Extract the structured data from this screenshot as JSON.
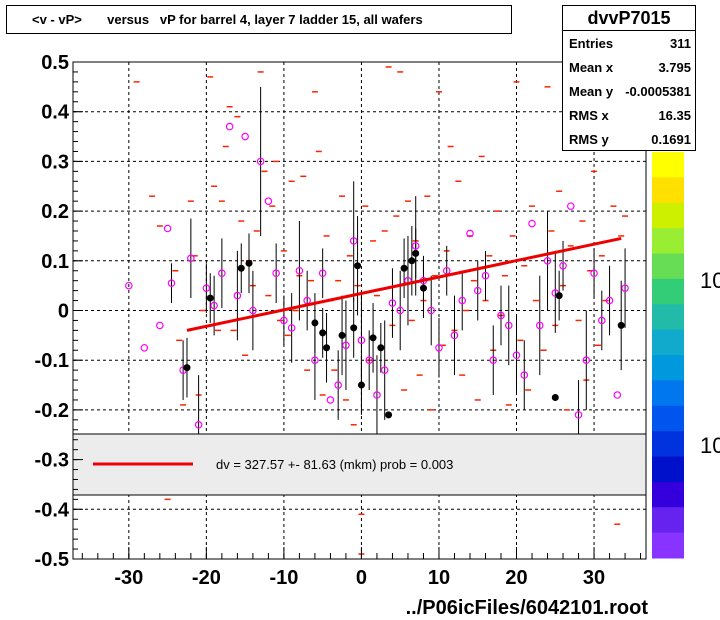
{
  "title": "<v - vP>       versus   vP for barrel 4, layer 7 ladder 15, all wafers",
  "stats": {
    "name": "dvvP7015",
    "rows": [
      {
        "label": "Entries",
        "value": "311"
      },
      {
        "label": "Mean x",
        "value": "3.795"
      },
      {
        "label": "Mean y",
        "value": "-0.0005381"
      },
      {
        "label": "RMS x",
        "value": "16.35"
      },
      {
        "label": "RMS y",
        "value": "0.1691"
      }
    ]
  },
  "footer": "../P06icFiles/6042101.root",
  "legend_text": "dv =  327.57 +- 81.63 (mkm) prob = 0.003",
  "palette_labels": [
    "10",
    "10"
  ],
  "colors": {
    "fit": "#ee0000",
    "profile": "#ff00ff",
    "markers": "#ff2200",
    "filled": "#000000"
  },
  "chart_data": {
    "type": "scatter",
    "title": "<v - vP>       versus   vP for barrel 4, layer 7 ladder 15, all wafers",
    "xlabel": "",
    "ylabel": "",
    "xlim": [
      -37,
      37
    ],
    "ylim": [
      -0.5,
      0.5
    ],
    "x_ticks": [
      -30,
      -20,
      -10,
      0,
      10,
      20,
      30
    ],
    "y_ticks": [
      -0.5,
      -0.4,
      -0.3,
      -0.2,
      -0.1,
      0,
      0.1,
      0.2,
      0.3,
      0.4,
      0.5
    ],
    "x_tick_labels": [
      "-30",
      "-20",
      "-10",
      "0",
      "10",
      "20",
      "30"
    ],
    "y_tick_labels": [
      "-0.5",
      "-0.4",
      "-0.3",
      "-0.2",
      "-0.1",
      "0",
      "0.1",
      "0.2",
      "0.3",
      "0.4",
      "0.5"
    ],
    "grid": true,
    "fit_line": {
      "x": [
        -22.5,
        33.5
      ],
      "y": [
        -0.04,
        0.145
      ]
    },
    "profile_points": [
      {
        "x": -30,
        "y": 0.05,
        "e": 0.0
      },
      {
        "x": -28,
        "y": -0.075,
        "e": 0.0
      },
      {
        "x": -26,
        "y": -0.03,
        "e": 0.0
      },
      {
        "x": -25,
        "y": 0.165,
        "e": 0.0
      },
      {
        "x": -24.5,
        "y": 0.055,
        "e": 0.04
      },
      {
        "x": -23,
        "y": -0.12,
        "e": 0.06
      },
      {
        "x": -22,
        "y": 0.105,
        "e": 0.08
      },
      {
        "x": -21,
        "y": -0.23,
        "e": 0.1
      },
      {
        "x": -20,
        "y": 0.045,
        "e": 0.05
      },
      {
        "x": -19,
        "y": 0.01,
        "e": 0.06
      },
      {
        "x": -18,
        "y": 0.075,
        "e": 0.07
      },
      {
        "x": -17,
        "y": 0.37,
        "e": 0.0
      },
      {
        "x": -16,
        "y": 0.03,
        "e": 0.09
      },
      {
        "x": -15,
        "y": 0.35,
        "e": 0.0
      },
      {
        "x": -14,
        "y": 0.0,
        "e": 0.08
      },
      {
        "x": -13,
        "y": 0.3,
        "e": 0.15
      },
      {
        "x": -12,
        "y": 0.22,
        "e": 0.0
      },
      {
        "x": -11,
        "y": 0.075,
        "e": 0.06
      },
      {
        "x": -10,
        "y": -0.02,
        "e": 0.05
      },
      {
        "x": -9,
        "y": -0.035,
        "e": 0.07
      },
      {
        "x": -8,
        "y": 0.08,
        "e": 0.1
      },
      {
        "x": -7,
        "y": 0.02,
        "e": 0.06
      },
      {
        "x": -6,
        "y": -0.1,
        "e": 0.08
      },
      {
        "x": -5,
        "y": 0.075,
        "e": 0.05
      },
      {
        "x": -4,
        "y": -0.18,
        "e": 0.0
      },
      {
        "x": -3,
        "y": -0.15,
        "e": 0.07
      },
      {
        "x": -2,
        "y": -0.07,
        "e": 0.09
      },
      {
        "x": -1,
        "y": 0.14,
        "e": 0.12
      },
      {
        "x": 0,
        "y": -0.06,
        "e": 0.1
      },
      {
        "x": 1,
        "y": -0.1,
        "e": 0.06
      },
      {
        "x": 2,
        "y": -0.17,
        "e": 0.08
      },
      {
        "x": 3,
        "y": -0.12,
        "e": 0.1
      },
      {
        "x": 4,
        "y": 0.015,
        "e": 0.07
      },
      {
        "x": 5,
        "y": 0.0,
        "e": 0.08
      },
      {
        "x": 6,
        "y": 0.06,
        "e": 0.09
      },
      {
        "x": 7,
        "y": 0.13,
        "e": 0.1
      },
      {
        "x": 8,
        "y": 0.06,
        "e": 0.05
      },
      {
        "x": 9,
        "y": 0.0,
        "e": 0.07
      },
      {
        "x": 10,
        "y": -0.075,
        "e": 0.06
      },
      {
        "x": 11,
        "y": 0.08,
        "e": 0.05
      },
      {
        "x": 12,
        "y": -0.05,
        "e": 0.08
      },
      {
        "x": 13,
        "y": 0.02,
        "e": 0.06
      },
      {
        "x": 14,
        "y": 0.155,
        "e": 0.0
      },
      {
        "x": 15,
        "y": 0.04,
        "e": 0.06
      },
      {
        "x": 16,
        "y": 0.07,
        "e": 0.05
      },
      {
        "x": 17,
        "y": -0.1,
        "e": 0.07
      },
      {
        "x": 18,
        "y": -0.01,
        "e": 0.06
      },
      {
        "x": 19,
        "y": -0.03,
        "e": 0.08
      },
      {
        "x": 20,
        "y": -0.09,
        "e": 0.08
      },
      {
        "x": 21,
        "y": -0.13,
        "e": 0.07
      },
      {
        "x": 22,
        "y": 0.175,
        "e": 0.0
      },
      {
        "x": 23,
        "y": -0.03,
        "e": 0.1
      },
      {
        "x": 24,
        "y": 0.1,
        "e": 0.1
      },
      {
        "x": 25,
        "y": 0.035,
        "e": 0.08
      },
      {
        "x": 26,
        "y": 0.09,
        "e": 0.05
      },
      {
        "x": 27,
        "y": 0.21,
        "e": 0.0
      },
      {
        "x": 28,
        "y": -0.21,
        "e": 0.07
      },
      {
        "x": 29,
        "y": -0.1,
        "e": 0.1
      },
      {
        "x": 30,
        "y": 0.075,
        "e": 0.05
      },
      {
        "x": 31,
        "y": -0.02,
        "e": 0.06
      },
      {
        "x": 32,
        "y": 0.02,
        "e": 0.07
      },
      {
        "x": 33,
        "y": -0.17,
        "e": 0.0
      },
      {
        "x": 34,
        "y": 0.045,
        "e": 0.08
      }
    ],
    "filled_points": [
      {
        "x": -22.5,
        "y": -0.115,
        "e": 0.06
      },
      {
        "x": -19.5,
        "y": 0.025,
        "e": 0.05
      },
      {
        "x": -15.5,
        "y": 0.085,
        "e": 0.05
      },
      {
        "x": -14.5,
        "y": 0.095,
        "e": 0.06
      },
      {
        "x": -6,
        "y": -0.025,
        "e": 0.06
      },
      {
        "x": -5,
        "y": -0.045,
        "e": 0.05
      },
      {
        "x": -4.5,
        "y": -0.075,
        "e": 0.07
      },
      {
        "x": -2.5,
        "y": -0.05,
        "e": 0.08
      },
      {
        "x": -1,
        "y": -0.035,
        "e": 0.06
      },
      {
        "x": -0.5,
        "y": 0.09,
        "e": 0.1
      },
      {
        "x": 0,
        "y": -0.15,
        "e": 0.06
      },
      {
        "x": 1.5,
        "y": -0.055,
        "e": 0.07
      },
      {
        "x": 2.5,
        "y": -0.075,
        "e": 0.05
      },
      {
        "x": 3.5,
        "y": -0.21,
        "e": 0.0
      },
      {
        "x": 5.5,
        "y": 0.085,
        "e": 0.06
      },
      {
        "x": 6.5,
        "y": 0.1,
        "e": 0.07
      },
      {
        "x": 7,
        "y": 0.115,
        "e": 0.05
      },
      {
        "x": 8,
        "y": 0.045,
        "e": 0.06
      },
      {
        "x": 25,
        "y": -0.175,
        "e": 0.0
      },
      {
        "x": 25.5,
        "y": 0.03,
        "e": 0.05
      },
      {
        "x": 33.5,
        "y": -0.03,
        "e": 0.09
      }
    ],
    "scatter_marks": [
      [
        -29,
        0.46
      ],
      [
        -27,
        0.23
      ],
      [
        -26,
        0.17
      ],
      [
        -24,
        0.08
      ],
      [
        -23.5,
        -0.06
      ],
      [
        -23,
        -0.19
      ],
      [
        -22,
        0.22
      ],
      [
        -21.5,
        0.11
      ],
      [
        -21,
        -0.17
      ],
      [
        -20.5,
        0.0
      ],
      [
        -19.5,
        0.47
      ],
      [
        -19,
        0.25
      ],
      [
        -18.5,
        -0.04
      ],
      [
        -18,
        0.22
      ],
      [
        -17.5,
        0.33
      ],
      [
        -17,
        0.41
      ],
      [
        -16.5,
        -0.04
      ],
      [
        -16,
        0.39
      ],
      [
        -15.5,
        0.18
      ],
      [
        -15,
        -0.09
      ],
      [
        -14.5,
        0.1
      ],
      [
        -14,
        0.05
      ],
      [
        -13.5,
        0.16
      ],
      [
        -13,
        0.48
      ],
      [
        -12.5,
        0.28
      ],
      [
        -12,
        0.03
      ],
      [
        -11.5,
        0.21
      ],
      [
        -11,
        0.3
      ],
      [
        -10.5,
        -0.02
      ],
      [
        -10,
        0.12
      ],
      [
        -9.5,
        -0.05
      ],
      [
        -9,
        0.26
      ],
      [
        -8.5,
        0.0
      ],
      [
        -8,
        0.07
      ],
      [
        -7.5,
        0.27
      ],
      [
        -7,
        -0.12
      ],
      [
        -6.5,
        0.06
      ],
      [
        -6,
        0.44
      ],
      [
        -5.5,
        0.32
      ],
      [
        -5,
        -0.17
      ],
      [
        -4.5,
        0.15
      ],
      [
        -4,
        0.02
      ],
      [
        -3.5,
        -0.12
      ],
      [
        -3,
        0.06
      ],
      [
        -2.5,
        0.23
      ],
      [
        -2,
        -0.18
      ],
      [
        -1.5,
        0.11
      ],
      [
        -1,
        -0.23
      ],
      [
        -0.5,
        0.05
      ],
      [
        0,
        -0.49
      ],
      [
        0.5,
        0.21
      ],
      [
        1,
        -0.1
      ],
      [
        1.5,
        0.14
      ],
      [
        2,
        0.03
      ],
      [
        2.5,
        -0.28
      ],
      [
        3,
        0.16
      ],
      [
        3.5,
        0.49
      ],
      [
        4,
        -0.03
      ],
      [
        4.5,
        0.19
      ],
      [
        5,
        0.48
      ],
      [
        5.5,
        -0.16
      ],
      [
        6,
        0.22
      ],
      [
        6.5,
        -0.02
      ],
      [
        7,
        0.14
      ],
      [
        7.5,
        -0.13
      ],
      [
        8,
        0.02
      ],
      [
        8.5,
        0.23
      ],
      [
        9,
        -0.2
      ],
      [
        9.5,
        0.07
      ],
      [
        10,
        0.44
      ],
      [
        10.5,
        -0.07
      ],
      [
        11,
        0.12
      ],
      [
        11.5,
        0.33
      ],
      [
        12,
        -0.04
      ],
      [
        12.5,
        0.26
      ],
      [
        13,
        -0.13
      ],
      [
        13.5,
        0.0
      ],
      [
        14,
        0.15
      ],
      [
        14.5,
        0.06
      ],
      [
        15,
        -0.18
      ],
      [
        15.5,
        0.31
      ],
      [
        16,
        0.02
      ],
      [
        16.5,
        0.11
      ],
      [
        17,
        -0.08
      ],
      [
        17.5,
        0.2
      ],
      [
        18,
        -0.01
      ],
      [
        18.5,
        0.07
      ],
      [
        19,
        -0.19
      ],
      [
        19.5,
        0.15
      ],
      [
        20,
        0.46
      ],
      [
        20.5,
        -0.06
      ],
      [
        21,
        0.09
      ],
      [
        21.5,
        -0.16
      ],
      [
        22,
        0.21
      ],
      [
        22.5,
        0.02
      ],
      [
        23,
        0.11
      ],
      [
        23.5,
        -0.08
      ],
      [
        24,
        0.45
      ],
      [
        24.5,
        0.16
      ],
      [
        25,
        -0.03
      ],
      [
        25.5,
        0.24
      ],
      [
        26,
        0.05
      ],
      [
        26.5,
        -0.2
      ],
      [
        27,
        0.13
      ],
      [
        27.5,
        0.36
      ],
      [
        28,
        -0.02
      ],
      [
        28.5,
        0.18
      ],
      [
        29,
        -0.14
      ],
      [
        29.5,
        0.08
      ],
      [
        30,
        0.28
      ],
      [
        30.5,
        -0.07
      ],
      [
        31,
        0.11
      ],
      [
        31.5,
        0.02
      ],
      [
        32,
        -0.26
      ],
      [
        32.5,
        0.21
      ],
      [
        33,
        -0.43
      ],
      [
        33.5,
        0.15
      ],
      [
        34,
        0.19
      ],
      [
        -25,
        -0.38
      ],
      [
        0,
        -0.41
      ]
    ],
    "palette": [
      "#ffff00",
      "#ffe000",
      "#ccf000",
      "#99ee33",
      "#66dd55",
      "#33cc77",
      "#22bbaa",
      "#11aacc",
      "#0099dd",
      "#0077ee",
      "#0055ee",
      "#0033dd",
      "#0011cc",
      "#3300dd",
      "#6622ee",
      "#8833ff"
    ]
  }
}
